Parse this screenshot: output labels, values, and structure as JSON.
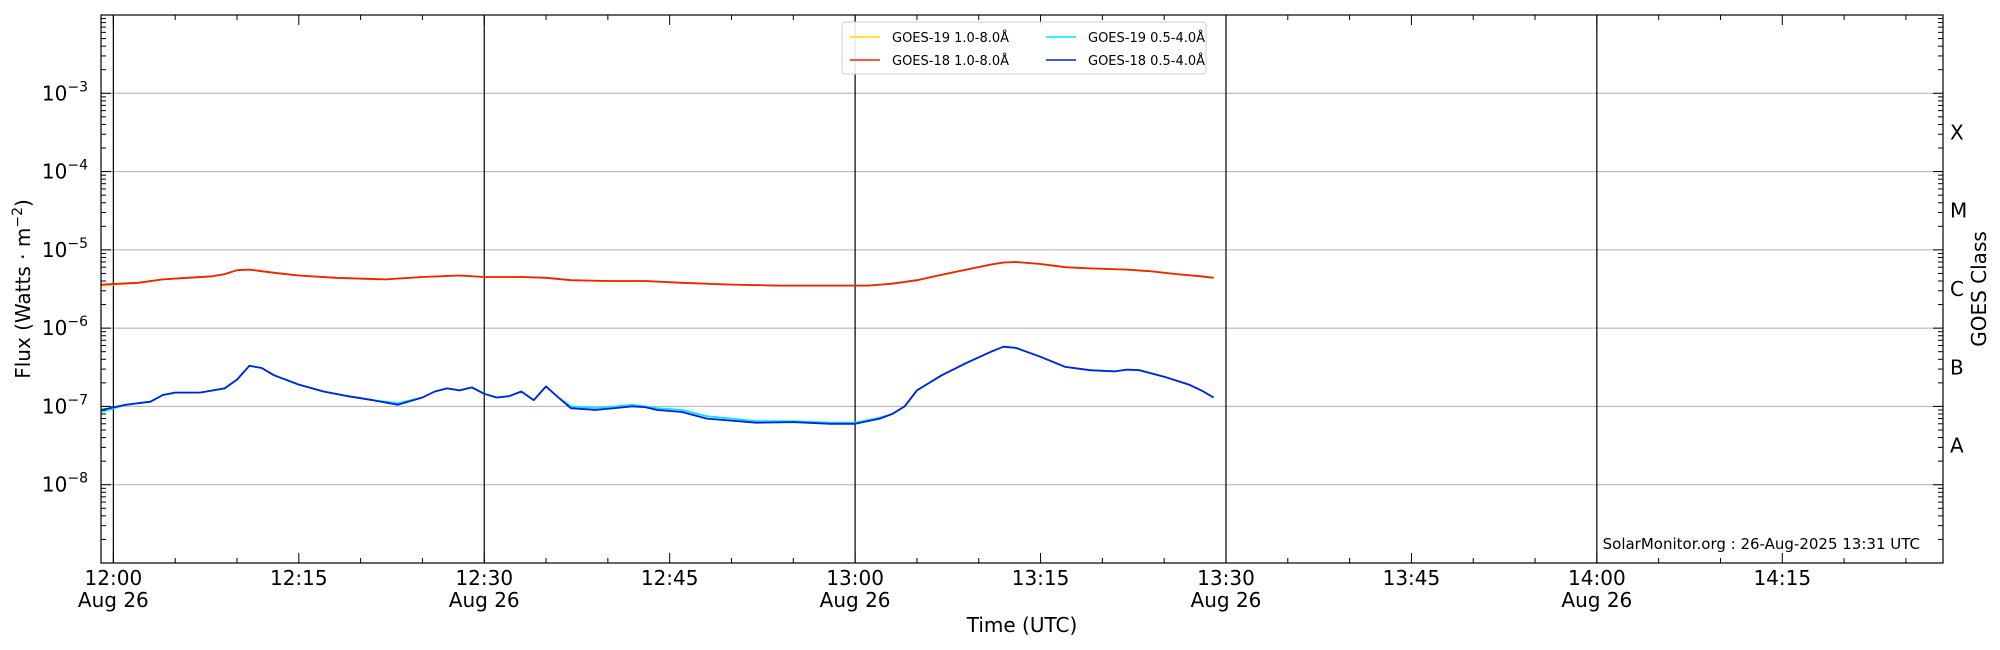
{
  "chart_data": {
    "type": "line",
    "xlabel": "Time (UTC)",
    "ylabel_prefix": "Flux (Watts · m",
    "ylabel_exp": "−2",
    "ylabel_suffix": ")",
    "y2label": "GOES Class",
    "xlim_minutes": [
      -1,
      148
    ],
    "ylim_exp": [
      -9,
      -2
    ],
    "yscale": "log",
    "grid": "horizontal at major y ticks",
    "vertical_lines_minutes": [
      0,
      30,
      60,
      90,
      120
    ],
    "x_ticks": [
      {
        "m": 0,
        "time": "12:00",
        "date": "Aug 26"
      },
      {
        "m": 15,
        "time": "12:15",
        "date": ""
      },
      {
        "m": 30,
        "time": "12:30",
        "date": "Aug 26"
      },
      {
        "m": 45,
        "time": "12:45",
        "date": ""
      },
      {
        "m": 60,
        "time": "13:00",
        "date": "Aug 26"
      },
      {
        "m": 75,
        "time": "13:15",
        "date": ""
      },
      {
        "m": 90,
        "time": "13:30",
        "date": "Aug 26"
      },
      {
        "m": 105,
        "time": "13:45",
        "date": ""
      },
      {
        "m": 120,
        "time": "14:00",
        "date": "Aug 26"
      },
      {
        "m": 135,
        "time": "14:15",
        "date": ""
      }
    ],
    "y_ticks": [
      {
        "exp": -8,
        "base": "10",
        "power": "−8"
      },
      {
        "exp": -7,
        "base": "10",
        "power": "−7"
      },
      {
        "exp": -6,
        "base": "10",
        "power": "−6"
      },
      {
        "exp": -5,
        "base": "10",
        "power": "−5"
      },
      {
        "exp": -4,
        "base": "10",
        "power": "−4"
      },
      {
        "exp": -3,
        "base": "10",
        "power": "−3"
      }
    ],
    "classes": [
      {
        "label": "A",
        "exp": -7.5
      },
      {
        "label": "B",
        "exp": -6.5
      },
      {
        "label": "C",
        "exp": -5.5
      },
      {
        "label": "M",
        "exp": -4.5
      },
      {
        "label": "X",
        "exp": -3.5
      }
    ],
    "legend": {
      "placement": "top-center",
      "columns": 2,
      "entries": [
        {
          "name": "GOES-19 1.0-8.0Å",
          "color": "#ffd700"
        },
        {
          "name": "GOES-19 0.5-4.0Å",
          "color": "#00e5ff"
        },
        {
          "name": "GOES-18 1.0-8.0Å",
          "color": "#ee2200"
        },
        {
          "name": "GOES-18 0.5-4.0Å",
          "color": "#0022dd"
        }
      ]
    },
    "credit": "SolarMonitor.org : 26-Aug-2025 13:31 UTC",
    "series": [
      {
        "name": "GOES-19 1.0-8.0Å",
        "color": "#ffd700",
        "points": [
          [
            -1,
            3.5e-06
          ],
          [
            2,
            3.8e-06
          ],
          [
            4,
            4.2e-06
          ],
          [
            6,
            4.4e-06
          ],
          [
            8,
            4.6e-06
          ],
          [
            9,
            4.9e-06
          ],
          [
            10,
            5.5e-06
          ],
          [
            11,
            5.6e-06
          ],
          [
            13,
            5.1e-06
          ],
          [
            15,
            4.7e-06
          ],
          [
            18,
            4.4e-06
          ],
          [
            22,
            4.2e-06
          ],
          [
            25,
            4.5e-06
          ],
          [
            28,
            4.7e-06
          ],
          [
            30,
            4.5e-06
          ],
          [
            33,
            4.5e-06
          ],
          [
            35,
            4.4e-06
          ],
          [
            37,
            4.1e-06
          ],
          [
            40,
            4e-06
          ],
          [
            43,
            4e-06
          ],
          [
            46,
            3.8e-06
          ],
          [
            50,
            3.6e-06
          ],
          [
            54,
            3.5e-06
          ],
          [
            58,
            3.5e-06
          ],
          [
            61,
            3.5e-06
          ],
          [
            63,
            3.7e-06
          ],
          [
            65,
            4.1e-06
          ],
          [
            67,
            4.8e-06
          ],
          [
            69,
            5.6e-06
          ],
          [
            71,
            6.5e-06
          ],
          [
            72,
            6.9e-06
          ],
          [
            73,
            7e-06
          ],
          [
            75,
            6.6e-06
          ],
          [
            77,
            6e-06
          ],
          [
            79,
            5.8e-06
          ],
          [
            82,
            5.6e-06
          ],
          [
            84,
            5.3e-06
          ],
          [
            86,
            4.9e-06
          ],
          [
            88,
            4.6e-06
          ],
          [
            89,
            4.4e-06
          ]
        ]
      },
      {
        "name": "GOES-19 0.5-4.0Å",
        "color": "#00e5ff",
        "points": [
          [
            -1,
            8.5e-08
          ],
          [
            1,
            1.05e-07
          ],
          [
            3,
            1.15e-07
          ],
          [
            4,
            1.4e-07
          ],
          [
            5,
            1.5e-07
          ],
          [
            7,
            1.5e-07
          ],
          [
            9,
            1.7e-07
          ],
          [
            10,
            2.2e-07
          ],
          [
            11,
            3.3e-07
          ],
          [
            12,
            3.1e-07
          ],
          [
            13,
            2.5e-07
          ],
          [
            15,
            1.9e-07
          ],
          [
            17,
            1.55e-07
          ],
          [
            19,
            1.35e-07
          ],
          [
            21,
            1.2e-07
          ],
          [
            23,
            1.1e-07
          ],
          [
            25,
            1.3e-07
          ],
          [
            26,
            1.55e-07
          ],
          [
            27,
            1.7e-07
          ],
          [
            28,
            1.6e-07
          ],
          [
            29,
            1.75e-07
          ],
          [
            30,
            1.45e-07
          ],
          [
            31,
            1.3e-07
          ],
          [
            32,
            1.35e-07
          ],
          [
            33,
            1.55e-07
          ],
          [
            34,
            1.2e-07
          ],
          [
            35,
            1.8e-07
          ],
          [
            36,
            1.3e-07
          ],
          [
            37,
            1e-07
          ],
          [
            39,
            9.5e-08
          ],
          [
            42,
            1.05e-07
          ],
          [
            44,
            9.5e-08
          ],
          [
            46,
            9e-08
          ],
          [
            48,
            7.5e-08
          ],
          [
            52,
            6.5e-08
          ],
          [
            55,
            6.5e-08
          ],
          [
            58,
            6.2e-08
          ],
          [
            60,
            6.2e-08
          ],
          [
            62,
            7.2e-08
          ],
          [
            63,
            8e-08
          ],
          [
            64,
            1e-07
          ],
          [
            65,
            1.6e-07
          ],
          [
            67,
            2.5e-07
          ],
          [
            69,
            3.6e-07
          ],
          [
            71,
            5e-07
          ],
          [
            72,
            5.8e-07
          ],
          [
            73,
            5.6e-07
          ],
          [
            75,
            4.3e-07
          ],
          [
            77,
            3.2e-07
          ],
          [
            79,
            2.9e-07
          ],
          [
            81,
            2.8e-07
          ],
          [
            82,
            2.95e-07
          ],
          [
            83,
            2.9e-07
          ],
          [
            85,
            2.4e-07
          ],
          [
            87,
            1.9e-07
          ],
          [
            88,
            1.6e-07
          ],
          [
            89,
            1.3e-07
          ]
        ]
      },
      {
        "name": "GOES-18 1.0-8.0Å",
        "color": "#ee2200",
        "points": [
          [
            -1,
            3.6e-06
          ],
          [
            2,
            3.8e-06
          ],
          [
            4,
            4.2e-06
          ],
          [
            6,
            4.4e-06
          ],
          [
            8,
            4.6e-06
          ],
          [
            9,
            4.9e-06
          ],
          [
            10,
            5.5e-06
          ],
          [
            11,
            5.6e-06
          ],
          [
            13,
            5.1e-06
          ],
          [
            15,
            4.7e-06
          ],
          [
            18,
            4.4e-06
          ],
          [
            22,
            4.2e-06
          ],
          [
            25,
            4.5e-06
          ],
          [
            28,
            4.7e-06
          ],
          [
            30,
            4.5e-06
          ],
          [
            33,
            4.5e-06
          ],
          [
            35,
            4.4e-06
          ],
          [
            37,
            4.1e-06
          ],
          [
            40,
            4e-06
          ],
          [
            43,
            4e-06
          ],
          [
            46,
            3.8e-06
          ],
          [
            50,
            3.6e-06
          ],
          [
            54,
            3.5e-06
          ],
          [
            58,
            3.5e-06
          ],
          [
            61,
            3.5e-06
          ],
          [
            63,
            3.7e-06
          ],
          [
            65,
            4.1e-06
          ],
          [
            67,
            4.8e-06
          ],
          [
            69,
            5.6e-06
          ],
          [
            71,
            6.5e-06
          ],
          [
            72,
            6.9e-06
          ],
          [
            73,
            7e-06
          ],
          [
            75,
            6.6e-06
          ],
          [
            77,
            6e-06
          ],
          [
            79,
            5.8e-06
          ],
          [
            82,
            5.6e-06
          ],
          [
            84,
            5.3e-06
          ],
          [
            86,
            4.9e-06
          ],
          [
            88,
            4.6e-06
          ],
          [
            89,
            4.4e-06
          ]
        ]
      },
      {
        "name": "GOES-18 0.5-4.0Å",
        "color": "#0022dd",
        "points": [
          [
            -1,
            9e-08
          ],
          [
            1,
            1.05e-07
          ],
          [
            3,
            1.15e-07
          ],
          [
            4,
            1.4e-07
          ],
          [
            5,
            1.5e-07
          ],
          [
            7,
            1.5e-07
          ],
          [
            9,
            1.7e-07
          ],
          [
            10,
            2.2e-07
          ],
          [
            11,
            3.3e-07
          ],
          [
            12,
            3.1e-07
          ],
          [
            13,
            2.5e-07
          ],
          [
            15,
            1.9e-07
          ],
          [
            17,
            1.55e-07
          ],
          [
            19,
            1.35e-07
          ],
          [
            21,
            1.2e-07
          ],
          [
            23,
            1.05e-07
          ],
          [
            25,
            1.3e-07
          ],
          [
            26,
            1.55e-07
          ],
          [
            27,
            1.7e-07
          ],
          [
            28,
            1.6e-07
          ],
          [
            29,
            1.75e-07
          ],
          [
            30,
            1.45e-07
          ],
          [
            31,
            1.3e-07
          ],
          [
            32,
            1.35e-07
          ],
          [
            33,
            1.55e-07
          ],
          [
            34,
            1.2e-07
          ],
          [
            35,
            1.8e-07
          ],
          [
            36,
            1.3e-07
          ],
          [
            37,
            9.5e-08
          ],
          [
            39,
            9e-08
          ],
          [
            42,
            1e-07
          ],
          [
            43,
            9.8e-08
          ],
          [
            44,
            9e-08
          ],
          [
            46,
            8.5e-08
          ],
          [
            48,
            7e-08
          ],
          [
            52,
            6.2e-08
          ],
          [
            55,
            6.3e-08
          ],
          [
            58,
            6e-08
          ],
          [
            60,
            6e-08
          ],
          [
            62,
            7e-08
          ],
          [
            63,
            8e-08
          ],
          [
            64,
            1e-07
          ],
          [
            65,
            1.6e-07
          ],
          [
            67,
            2.5e-07
          ],
          [
            69,
            3.6e-07
          ],
          [
            71,
            5e-07
          ],
          [
            72,
            5.8e-07
          ],
          [
            73,
            5.6e-07
          ],
          [
            75,
            4.3e-07
          ],
          [
            77,
            3.2e-07
          ],
          [
            79,
            2.9e-07
          ],
          [
            81,
            2.8e-07
          ],
          [
            82,
            2.95e-07
          ],
          [
            83,
            2.9e-07
          ],
          [
            85,
            2.4e-07
          ],
          [
            87,
            1.9e-07
          ],
          [
            88,
            1.6e-07
          ],
          [
            89,
            1.3e-07
          ]
        ]
      }
    ]
  }
}
